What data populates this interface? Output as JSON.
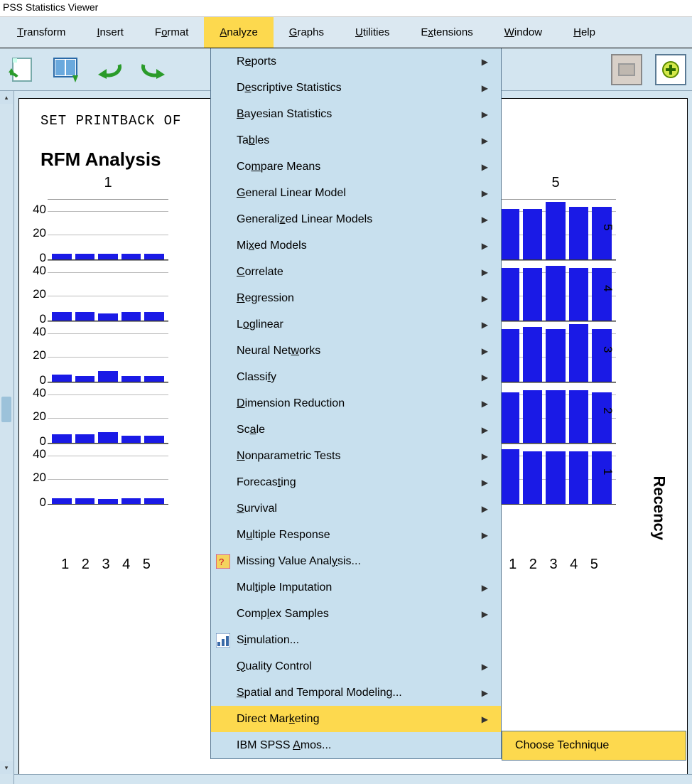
{
  "titlebar": "PSS Statistics Viewer",
  "menubar": {
    "items": [
      {
        "pre": "",
        "u": "T",
        "post": "ransform"
      },
      {
        "pre": "",
        "u": "I",
        "post": "nsert"
      },
      {
        "pre": "F",
        "u": "o",
        "post": "rmat"
      },
      {
        "pre": "",
        "u": "A",
        "post": "nalyze"
      },
      {
        "pre": "",
        "u": "G",
        "post": "raphs"
      },
      {
        "pre": "",
        "u": "U",
        "post": "tilities"
      },
      {
        "pre": "E",
        "u": "x",
        "post": "tensions"
      },
      {
        "pre": "",
        "u": "W",
        "post": "indow"
      },
      {
        "pre": "",
        "u": "H",
        "post": "elp"
      }
    ],
    "active_index": 3
  },
  "syntax_line": "SET PRINTBACK OF",
  "heading": "RFM Analysis",
  "dropdown": [
    {
      "pre": "R",
      "u": "e",
      "post": "ports",
      "arrow": true,
      "icon": null
    },
    {
      "pre": "D",
      "u": "e",
      "post": "scriptive Statistics",
      "arrow": true,
      "icon": null
    },
    {
      "pre": "",
      "u": "B",
      "post": "ayesian Statistics",
      "arrow": true,
      "icon": null
    },
    {
      "pre": "Ta",
      "u": "b",
      "post": "les",
      "arrow": true,
      "icon": null
    },
    {
      "pre": "Co",
      "u": "m",
      "post": "pare Means",
      "arrow": true,
      "icon": null
    },
    {
      "pre": "",
      "u": "G",
      "post": "eneral Linear Model",
      "arrow": true,
      "icon": null
    },
    {
      "pre": "Generali",
      "u": "z",
      "post": "ed Linear Models",
      "arrow": true,
      "icon": null
    },
    {
      "pre": "Mi",
      "u": "x",
      "post": "ed Models",
      "arrow": true,
      "icon": null
    },
    {
      "pre": "",
      "u": "C",
      "post": "orrelate",
      "arrow": true,
      "icon": null
    },
    {
      "pre": "",
      "u": "R",
      "post": "egression",
      "arrow": true,
      "icon": null
    },
    {
      "pre": "L",
      "u": "o",
      "post": "glinear",
      "arrow": true,
      "icon": null
    },
    {
      "pre": "Neural Net",
      "u": "w",
      "post": "orks",
      "arrow": true,
      "icon": null
    },
    {
      "pre": "Classi",
      "u": "f",
      "post": "y",
      "arrow": true,
      "icon": null
    },
    {
      "pre": "",
      "u": "D",
      "post": "imension Reduction",
      "arrow": true,
      "icon": null
    },
    {
      "pre": "Sc",
      "u": "a",
      "post": "le",
      "arrow": true,
      "icon": null
    },
    {
      "pre": "",
      "u": "N",
      "post": "onparametric Tests",
      "arrow": true,
      "icon": null
    },
    {
      "pre": "Forecas",
      "u": "t",
      "post": "ing",
      "arrow": true,
      "icon": null
    },
    {
      "pre": "",
      "u": "S",
      "post": "urvival",
      "arrow": true,
      "icon": null
    },
    {
      "pre": "M",
      "u": "u",
      "post": "ltiple Response",
      "arrow": true,
      "icon": null
    },
    {
      "pre": "Missing Value Anal",
      "u": "y",
      "post": "sis...",
      "arrow": false,
      "icon": "mva"
    },
    {
      "pre": "Mul",
      "u": "t",
      "post": "iple Imputation",
      "arrow": true,
      "icon": null
    },
    {
      "pre": "Comp",
      "u": "l",
      "post": "ex Samples",
      "arrow": true,
      "icon": null
    },
    {
      "pre": "S",
      "u": "i",
      "post": "mulation...",
      "arrow": false,
      "icon": "sim"
    },
    {
      "pre": "",
      "u": "Q",
      "post": "uality Control",
      "arrow": true,
      "icon": null
    },
    {
      "pre": "",
      "u": "S",
      "post": "patial and Temporal Modeling...",
      "arrow": true,
      "icon": null
    },
    {
      "pre": "Direct Mar",
      "u": "k",
      "post": "eting",
      "arrow": true,
      "icon": null,
      "highlight": true
    },
    {
      "pre": "IBM SPSS ",
      "u": "A",
      "post": "mos...",
      "arrow": false,
      "icon": null
    }
  ],
  "submenu": {
    "pre": "",
    "u": "C",
    "post": "hoose Technique"
  },
  "chart": {
    "col_headers": [
      "1",
      "5"
    ],
    "y_ticks": [
      "40",
      "20",
      "0"
    ],
    "x_labels": "1 2 3 4 5",
    "recency_labels": [
      "5",
      "4",
      "3",
      "2",
      "1"
    ],
    "recency_title": "Recency",
    "bar_color": "#1a1ae6",
    "grid_color": "#bbbbbb",
    "columns": {
      "left": {
        "x": 10,
        "panels": [
          {
            "heights": [
              5,
              5,
              5,
              5,
              5
            ]
          },
          {
            "heights": [
              7,
              7,
              6,
              7,
              7
            ]
          },
          {
            "heights": [
              6,
              5,
              9,
              5,
              5
            ]
          },
          {
            "heights": [
              7,
              7,
              9,
              6,
              6
            ]
          },
          {
            "heights": [
              5,
              5,
              4,
              5,
              5
            ]
          }
        ]
      },
      "right": {
        "x": 640,
        "panels": [
          {
            "heights": [
              42,
              42,
              48,
              44,
              44
            ]
          },
          {
            "heights": [
              44,
              44,
              46,
              44,
              44
            ]
          },
          {
            "heights": [
              44,
              46,
              44,
              48,
              44
            ]
          },
          {
            "heights": [
              42,
              44,
              44,
              44,
              42
            ]
          },
          {
            "heights": [
              46,
              44,
              44,
              44,
              44
            ]
          }
        ]
      }
    }
  }
}
